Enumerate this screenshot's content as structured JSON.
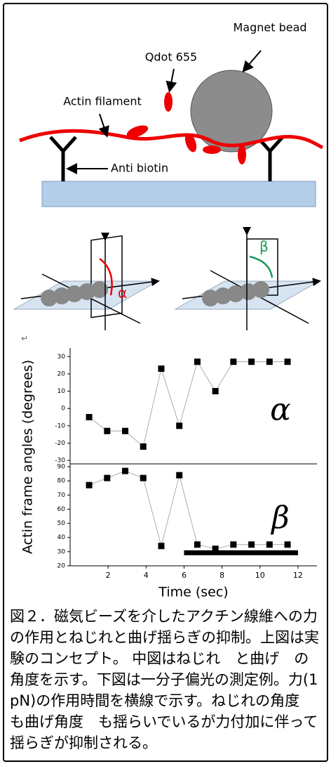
{
  "diagram": {
    "magnet_bead": "Magnet bead",
    "qdot": "Qdot 655",
    "actin": "Actin filament",
    "anti_biotin": "Anti biotin",
    "alpha_label": "α",
    "beta_label": "β"
  },
  "return_mark": "↵",
  "chart_data": [
    {
      "type": "line",
      "ylabel": "Actin frame angles (degrees)",
      "annotation": "α",
      "x": [
        1,
        1.95,
        2.9,
        3.85,
        4.8,
        5.75,
        6.7,
        7.65,
        8.6,
        9.55,
        10.5,
        11.45
      ],
      "series": [
        {
          "name": "α",
          "color": "#000000",
          "values": [
            -5,
            -13,
            -13,
            -22,
            23,
            -10,
            27,
            10,
            27,
            27,
            27,
            27
          ]
        }
      ],
      "xlim": [
        0,
        13
      ],
      "ylim": [
        -32,
        35
      ],
      "yticks": [
        -30,
        -20,
        -10,
        0,
        10,
        20,
        30
      ]
    },
    {
      "type": "line",
      "xlabel": "Time (sec)",
      "annotation": "β",
      "x": [
        1,
        1.95,
        2.9,
        3.85,
        4.8,
        5.75,
        6.7,
        7.65,
        8.6,
        9.55,
        10.5,
        11.45
      ],
      "series": [
        {
          "name": "β",
          "color": "#000000",
          "values": [
            77,
            82,
            87,
            82,
            34,
            84,
            35,
            32,
            35,
            35,
            35,
            35
          ]
        }
      ],
      "force_bar": [
        6,
        12
      ],
      "xlim": [
        0,
        13
      ],
      "ylim": [
        20,
        92
      ],
      "xticks": [
        2,
        4,
        6,
        8,
        10,
        12
      ],
      "yticks": [
        20,
        30,
        40,
        50,
        60,
        70,
        80,
        90
      ]
    }
  ],
  "caption": "図２．磁気ビーズを介したアクチン線維への力の作用とねじれと曲げ揺らぎの抑制。上図は実験のコンセプト。 中図はねじれ　と曲げ　の角度を示す。下図は一分子偏光の測定例。力(1 pN)の作用時間を横線で示す。ねじれの角度　も曲げ角度　も揺らいでいるが力付加に伴って揺らぎが抑制される。"
}
